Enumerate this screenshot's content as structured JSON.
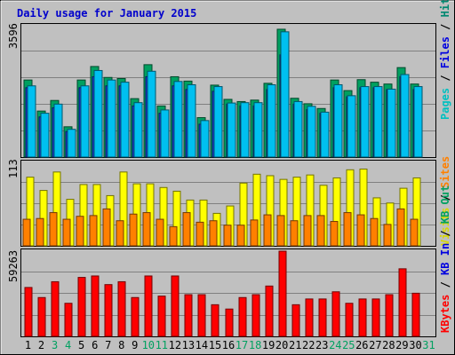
{
  "chart_data": {
    "type": "bar",
    "title": "Daily usage for January 2015",
    "categories": [
      "1",
      "2",
      "3",
      "4",
      "5",
      "6",
      "7",
      "8",
      "9",
      "10",
      "11",
      "12",
      "13",
      "14",
      "15",
      "16",
      "17",
      "18",
      "19",
      "20",
      "21",
      "22",
      "23",
      "24",
      "25",
      "26",
      "27",
      "28",
      "29",
      "30",
      "31"
    ],
    "weekend_days": [
      "3",
      "4",
      "10",
      "11",
      "17",
      "18",
      "24",
      "25",
      "31"
    ],
    "panels": [
      {
        "ymax_label": "3596",
        "ylim": [
          0,
          3596
        ],
        "axis_labels": [
          {
            "text": "Pages",
            "color": "#00c0c0"
          },
          {
            "text": "Files",
            "color": "#0000e0"
          },
          {
            "text": "Hits",
            "color": "#008870"
          }
        ],
        "series": [
          {
            "name": "Hits",
            "color": "#00a060",
            "values": [
              2110,
              1260,
              1550,
              830,
              2110,
              2480,
              2180,
              2150,
              1600,
              2530,
              1400,
              2200,
              2080,
              1080,
              1970,
              1580,
              1520,
              1560,
              2020,
              3500,
              1610,
              1460,
              1330,
              2110,
              1820,
              2120,
              2050,
              2000,
              2450,
              2000,
              0
            ]
          },
          {
            "name": "Files",
            "color": "#1838d8",
            "values": [
              1900,
              1100,
              1350,
              700,
              1900,
              2200,
              1950,
              1950,
              1400,
              2200,
              1200,
              1950,
              1850,
              900,
              1800,
              1450,
              1400,
              1400,
              1850,
              2800,
              1450,
              1300,
              1200,
              1900,
              1650,
              1900,
              1900,
              1850,
              2200,
              1850,
              0
            ]
          },
          {
            "name": "Pages",
            "color": "#00c0f0",
            "values": [
              1950,
              1200,
              1450,
              760,
              1950,
              2370,
              2110,
              2050,
              1490,
              2350,
              1290,
              2070,
              1980,
              1000,
              1930,
              1480,
              1490,
              1490,
              1980,
              3430,
              1520,
              1390,
              1230,
              1980,
              1680,
              1930,
              1930,
              1860,
              2260,
              1930,
              0
            ]
          }
        ]
      },
      {
        "ymax_label": "113",
        "ylim": [
          0,
          113
        ],
        "axis_labels": [
          {
            "text": "Visits",
            "color": "#d8d800"
          },
          {
            "text": "Sites",
            "color": "#ff8000"
          }
        ],
        "series": [
          {
            "name": "Visits",
            "color": "#ffff00",
            "values": [
              93,
              75,
              100,
              63,
              83,
              83,
              68,
              100,
              84,
              84,
              79,
              74,
              62,
              62,
              44,
              54,
              85,
              97,
              95,
              90,
              93,
              96,
              82,
              92,
              103,
              104,
              65,
              58,
              78,
              92,
              0
            ]
          },
          {
            "name": "Sites",
            "color": "#ff8000",
            "values": [
              36,
              37,
              45,
              36,
              40,
              41,
              50,
              34,
              43,
              45,
              36,
              26,
              45,
              32,
              34,
              28,
              28,
              35,
              42,
              41,
              34,
              41,
              41,
              33,
              45,
              42,
              37,
              29,
              50,
              36,
              0
            ]
          }
        ]
      },
      {
        "ymax_label": "59263",
        "ylim": [
          0,
          59263
        ],
        "axis_labels": [
          {
            "text": "KBytes",
            "color": "#ff0000"
          },
          {
            "text": "KB In",
            "color": "#0000e0"
          },
          {
            "text": "KB Out",
            "color": "#00a060"
          }
        ],
        "series": [
          {
            "name": "KBytes",
            "color": "#ff0000",
            "values": [
              34000,
              27000,
              38000,
              23000,
              41000,
              42000,
              36000,
              38000,
              27000,
              42000,
              28000,
              42000,
              29000,
              29000,
              22000,
              19000,
              27000,
              29000,
              35000,
              59263,
              22000,
              26000,
              26000,
              31000,
              23000,
              26000,
              26000,
              29000,
              47000,
              30000,
              0
            ]
          }
        ]
      }
    ]
  }
}
